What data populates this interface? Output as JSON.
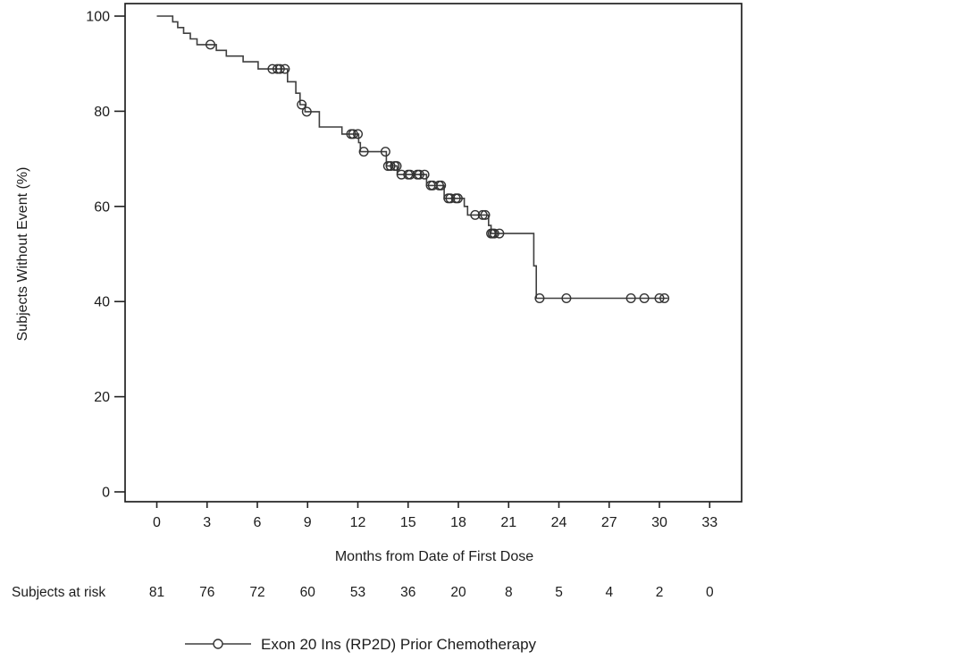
{
  "figure": {
    "background_color": "#ffffff",
    "frame_color": "#222222",
    "curve_color": "#3f3f3f",
    "text_color": "#1c1c1c"
  },
  "chart_data": {
    "type": "line",
    "subtype": "kaplan-meier-step-curve",
    "title": "",
    "x_axis": {
      "label": "Months from Date of First Dose",
      "ticks": [
        0,
        3,
        6,
        9,
        12,
        15,
        18,
        21,
        24,
        27,
        30,
        33
      ],
      "range": [
        0,
        34.8
      ],
      "grid": false
    },
    "y_axis": {
      "label": "Subjects Without Event (%)",
      "ticks": [
        100,
        80,
        60,
        40,
        20,
        0
      ],
      "range": [
        0,
        100
      ],
      "grid": false
    },
    "series": [
      {
        "name": "Exon 20 Ins (RP2D) Prior Chemotherapy",
        "marker": "open-circle-censor",
        "start": [
          0,
          100
        ],
        "steps": [
          [
            0.95,
            98.8
          ],
          [
            1.25,
            97.6
          ],
          [
            1.6,
            96.4
          ],
          [
            2.0,
            95.2
          ],
          [
            2.4,
            94.0
          ],
          [
            3.55,
            92.8
          ],
          [
            4.15,
            91.6
          ],
          [
            5.15,
            90.4
          ],
          [
            6.05,
            88.9
          ],
          [
            7.8,
            86.2
          ],
          [
            8.3,
            83.8
          ],
          [
            8.55,
            81.4
          ],
          [
            8.85,
            79.9
          ],
          [
            9.7,
            76.7
          ],
          [
            11.05,
            75.2
          ],
          [
            12.05,
            73.4
          ],
          [
            12.15,
            71.5
          ],
          [
            13.7,
            68.5
          ],
          [
            14.35,
            66.7
          ],
          [
            16.1,
            64.4
          ],
          [
            17.15,
            61.7
          ],
          [
            18.35,
            60.0
          ],
          [
            18.55,
            58.2
          ],
          [
            19.8,
            56.0
          ],
          [
            19.95,
            54.3
          ],
          [
            22.5,
            47.5
          ],
          [
            22.65,
            40.7
          ]
        ],
        "end_month": 30.5,
        "censor_marks": [
          [
            3.2,
            94.0
          ],
          [
            6.9,
            88.9
          ],
          [
            7.2,
            88.9
          ],
          [
            7.35,
            88.9
          ],
          [
            7.65,
            88.9
          ],
          [
            8.65,
            81.4
          ],
          [
            8.95,
            79.9
          ],
          [
            11.6,
            75.2
          ],
          [
            11.72,
            75.2
          ],
          [
            12.0,
            75.2
          ],
          [
            12.35,
            71.5
          ],
          [
            13.65,
            71.5
          ],
          [
            13.8,
            68.5
          ],
          [
            13.95,
            68.5
          ],
          [
            14.2,
            68.5
          ],
          [
            14.32,
            68.5
          ],
          [
            14.6,
            66.7
          ],
          [
            15.0,
            66.7
          ],
          [
            15.12,
            66.7
          ],
          [
            15.55,
            66.7
          ],
          [
            15.67,
            66.7
          ],
          [
            15.98,
            66.7
          ],
          [
            16.35,
            64.4
          ],
          [
            16.47,
            64.4
          ],
          [
            16.85,
            64.4
          ],
          [
            16.97,
            64.4
          ],
          [
            17.4,
            61.7
          ],
          [
            17.52,
            61.7
          ],
          [
            17.85,
            61.7
          ],
          [
            17.97,
            61.7
          ],
          [
            19.0,
            58.2
          ],
          [
            19.45,
            58.2
          ],
          [
            19.6,
            58.2
          ],
          [
            19.95,
            54.3
          ],
          [
            20.05,
            54.3
          ],
          [
            20.15,
            54.3
          ],
          [
            20.45,
            54.3
          ],
          [
            22.85,
            40.7
          ],
          [
            24.45,
            40.7
          ],
          [
            28.3,
            40.7
          ],
          [
            29.1,
            40.7
          ],
          [
            30.0,
            40.7
          ],
          [
            30.3,
            40.7
          ]
        ]
      }
    ],
    "at_risk": {
      "row_label": "Subjects at risk",
      "times": [
        0,
        3,
        6,
        9,
        12,
        15,
        18,
        21,
        24,
        27,
        30,
        33
      ],
      "values": [
        "81",
        "76",
        "72",
        "60",
        "53",
        "36",
        "20",
        "8",
        "5",
        "4",
        "2",
        "0"
      ]
    },
    "legend": {
      "label": "Exon 20 Ins (RP2D) Prior Chemotherapy",
      "position": "bottom",
      "marker": "line-with-open-circle"
    }
  }
}
